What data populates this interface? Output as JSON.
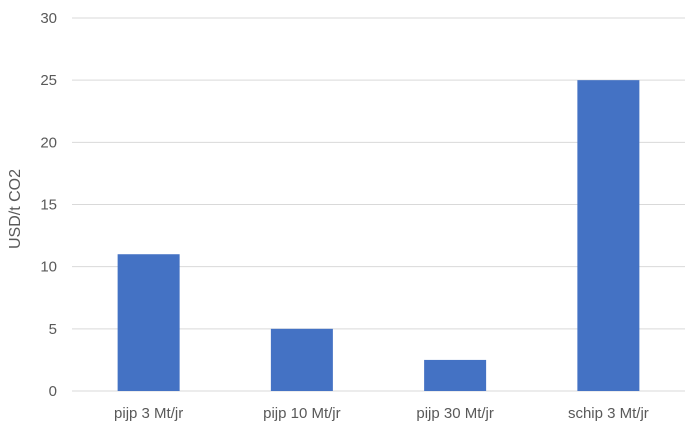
{
  "chart_data": {
    "type": "bar",
    "title": "",
    "xlabel": "",
    "ylabel": "USD/t CO2",
    "categories": [
      "pijp 3 Mt/jr",
      "pijp 10 Mt/jr",
      "pijp 30 Mt/jr",
      "schip 3 Mt/jr"
    ],
    "values": [
      11,
      5,
      2.5,
      25
    ],
    "ylim": [
      0,
      30
    ],
    "yticks": [
      "0",
      "5",
      "10",
      "15",
      "20",
      "25",
      "30"
    ],
    "grid": true,
    "legend": "none",
    "colors": {
      "bar": "#4472C4",
      "grid": "#D9D9D9",
      "text": "#595959"
    }
  }
}
